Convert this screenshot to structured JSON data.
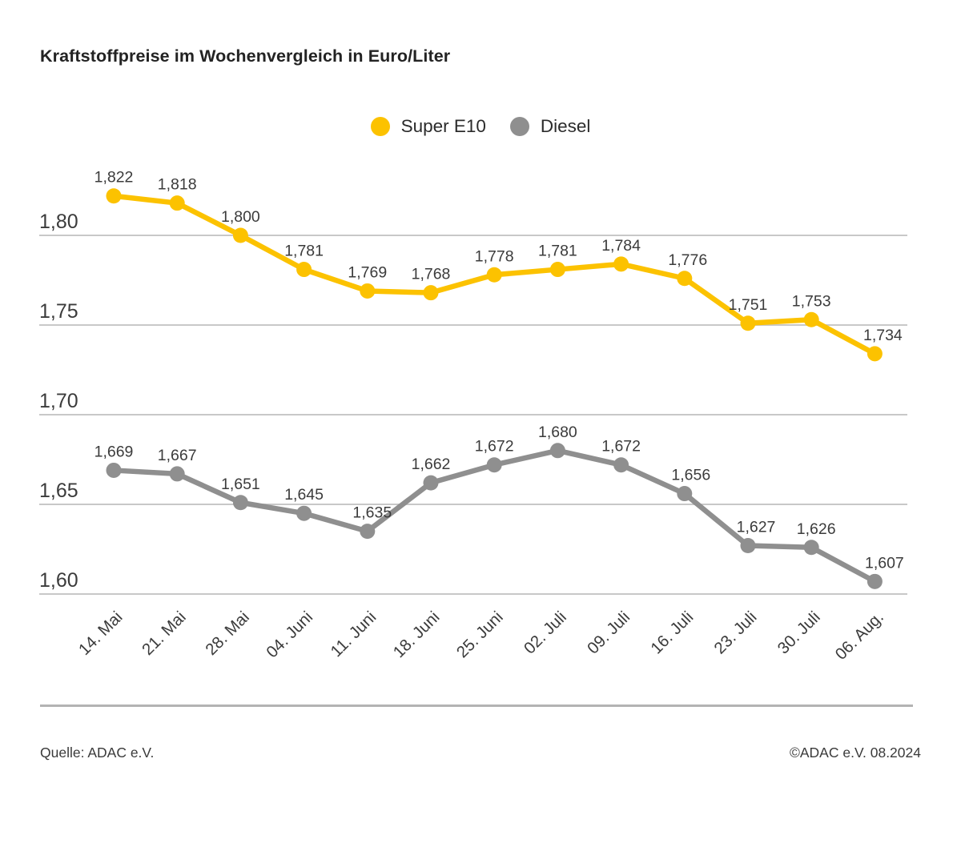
{
  "title": "Kraftstoffpreise im Wochenvergleich in Euro/Liter",
  "legend": [
    {
      "label": "Super E10",
      "color": "#FCC200"
    },
    {
      "label": "Diesel",
      "color": "#8F8F8F"
    }
  ],
  "footer": {
    "source": "Quelle: ADAC e.V.",
    "copyright": "©ADAC e.V. 08.2024"
  },
  "chart_data": {
    "type": "line",
    "title": "Kraftstoffpreise im Wochenvergleich in Euro/Liter",
    "unit": "Euro/Liter",
    "xlabel": "",
    "ylabel": "",
    "categories": [
      "14. Mai",
      "21. Mai",
      "28. Mai",
      "04. Juni",
      "11. Juni",
      "18. Juni",
      "25. Juni",
      "02. Juli",
      "09. Juli",
      "16. Juli",
      "23. Juli",
      "30. Juli",
      "06. Aug."
    ],
    "series": [
      {
        "name": "Super E10",
        "color": "#FCC200",
        "values": [
          1.822,
          1.818,
          1.8,
          1.781,
          1.769,
          1.768,
          1.778,
          1.781,
          1.784,
          1.776,
          1.751,
          1.753,
          1.734
        ],
        "labels": [
          "1,822",
          "1,818",
          "1,800",
          "1,781",
          "1,769",
          "1,768",
          "1,778",
          "1,781",
          "1,784",
          "1,776",
          "1,751",
          "1,753",
          "1,734"
        ]
      },
      {
        "name": "Diesel",
        "color": "#8F8F8F",
        "values": [
          1.669,
          1.667,
          1.651,
          1.645,
          1.635,
          1.662,
          1.672,
          1.68,
          1.672,
          1.656,
          1.627,
          1.626,
          1.607
        ],
        "labels": [
          "1,669",
          "1,667",
          "1,651",
          "1,645",
          "1,635",
          "1,662",
          "1,672",
          "1,680",
          "1,672",
          "1,656",
          "1,627",
          "1,626",
          "1,607"
        ]
      }
    ],
    "y_ticks": [
      1.8,
      1.75,
      1.7,
      1.65,
      1.6
    ],
    "y_tick_labels": [
      "1,80",
      "1,75",
      "1,70",
      "1,65",
      "1,60"
    ],
    "ylim": [
      1.585,
      1.84
    ],
    "grid": true,
    "legend_position": "top-center",
    "show_point_labels": true,
    "decimal_separator": ","
  }
}
